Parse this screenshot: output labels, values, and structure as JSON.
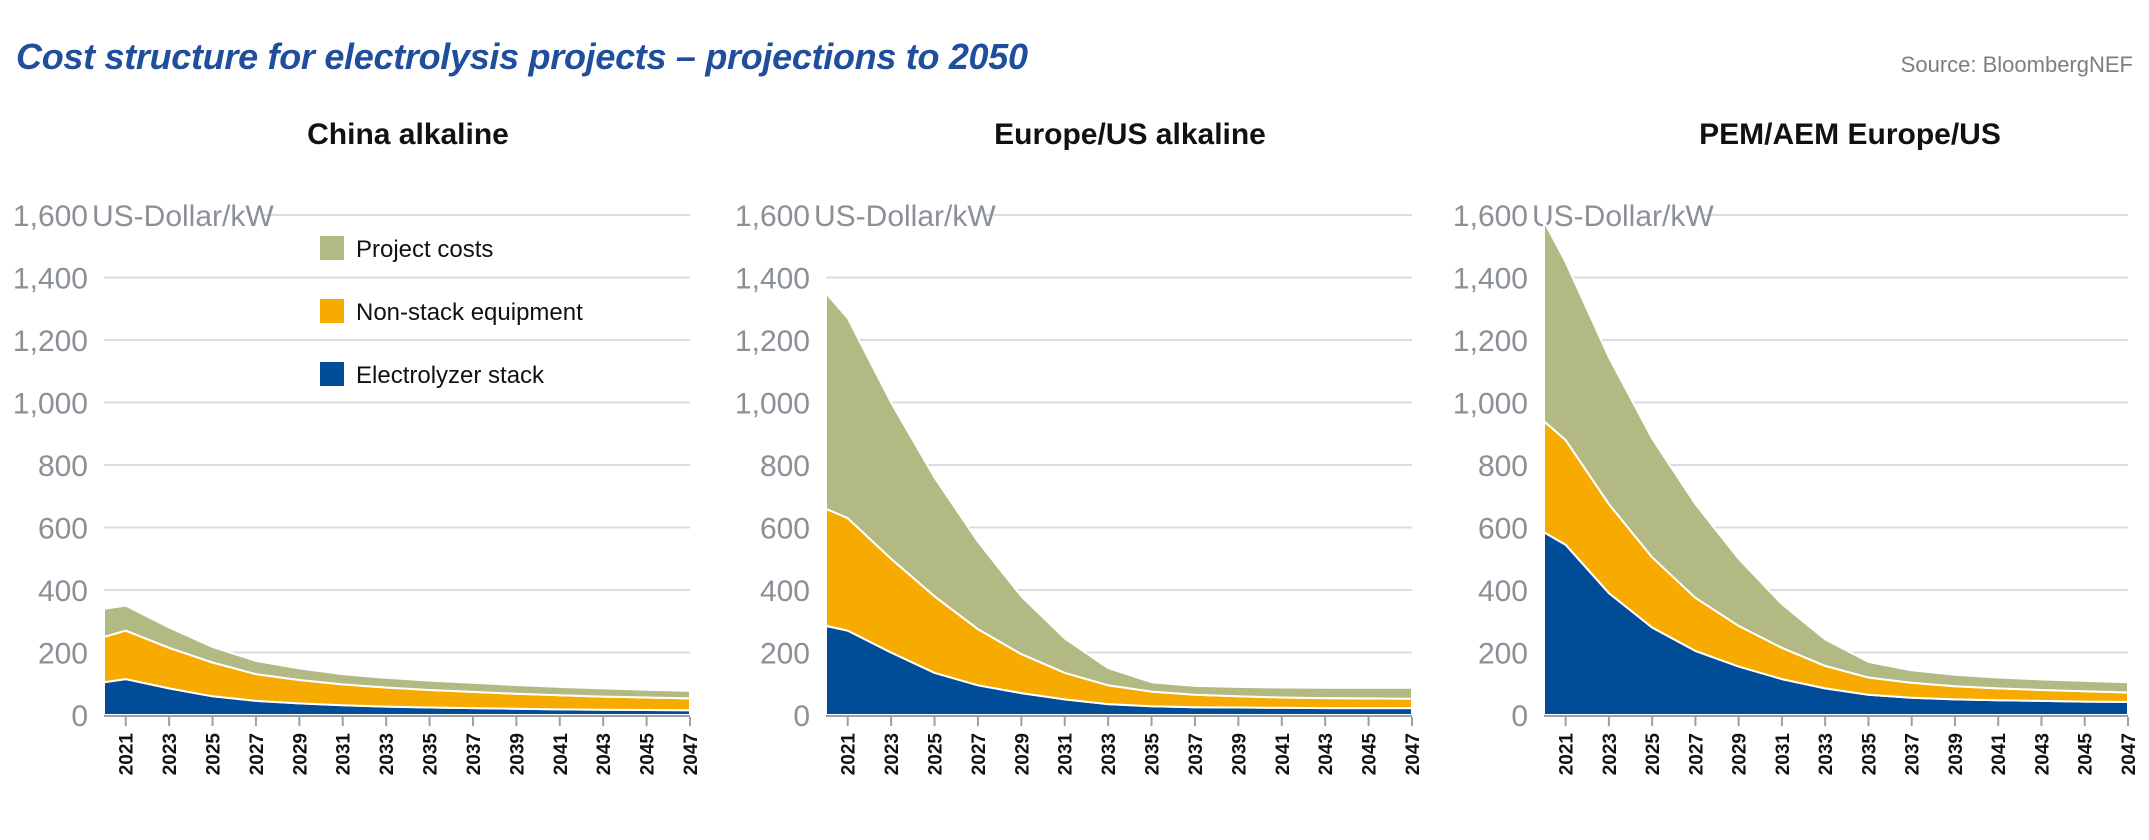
{
  "header": {
    "title": "Cost structure for electrolysis projects – projections to 2050",
    "source": "Source: BloombergNEF"
  },
  "colors": {
    "project_costs": "#b3b982",
    "non_stack": "#f7ab00",
    "stack": "#004c97",
    "grid": "#d9dce1",
    "axis_text": "#8b9097",
    "title": "#1f4e9c"
  },
  "chart_data": [
    {
      "type": "area",
      "stacked": true,
      "title": "China alkaline",
      "unit_label": "US-Dollar/kW",
      "ylim": [
        0,
        1600
      ],
      "yticks": [
        0,
        200,
        400,
        600,
        800,
        1000,
        1200,
        1400,
        1600
      ],
      "ytick_labels": [
        "0",
        "200",
        "400",
        "600",
        "800",
        "1,000",
        "1,200",
        "1,400",
        "1,600"
      ],
      "x_tick_labels": [
        "2021",
        "2023",
        "2025",
        "2027",
        "2029",
        "2031",
        "2033",
        "2035",
        "2037",
        "2039",
        "2041",
        "2043",
        "2045",
        "2047"
      ],
      "x_years": [
        2020,
        2021,
        2023,
        2025,
        2027,
        2029,
        2031,
        2033,
        2035,
        2037,
        2039,
        2041,
        2043,
        2045,
        2047
      ],
      "grid": true,
      "legend": {
        "position": "top-center",
        "items": [
          "Project costs",
          "Non-stack equipment",
          "Electrolyzer stack"
        ]
      },
      "series": [
        {
          "name": "Electrolyzer stack",
          "values": [
            105,
            115,
            85,
            60,
            45,
            37,
            31,
            27,
            24,
            22,
            20,
            18,
            17,
            16,
            15
          ]
        },
        {
          "name": "Non-stack equipment",
          "values": [
            145,
            155,
            130,
            108,
            86,
            75,
            67,
            61,
            56,
            52,
            48,
            45,
            42,
            40,
            38
          ]
        },
        {
          "name": "Project costs",
          "values": [
            90,
            80,
            65,
            50,
            42,
            37,
            33,
            31,
            30,
            29,
            28,
            27,
            26,
            25,
            24
          ]
        }
      ]
    },
    {
      "type": "area",
      "stacked": true,
      "title": "Europe/US alkaline",
      "unit_label": "US-Dollar/kW",
      "ylim": [
        0,
        1600
      ],
      "yticks": [
        0,
        200,
        400,
        600,
        800,
        1000,
        1200,
        1400,
        1600
      ],
      "ytick_labels": [
        "0",
        "200",
        "400",
        "600",
        "800",
        "1,000",
        "1,200",
        "1,400",
        "1,600"
      ],
      "x_tick_labels": [
        "2021",
        "2023",
        "2025",
        "2027",
        "2029",
        "2031",
        "2033",
        "2035",
        "2037",
        "2039",
        "2041",
        "2043",
        "2045",
        "2047"
      ],
      "x_years": [
        2020,
        2021,
        2023,
        2025,
        2027,
        2029,
        2031,
        2033,
        2035,
        2037,
        2039,
        2041,
        2043,
        2045,
        2047
      ],
      "grid": true,
      "series": [
        {
          "name": "Electrolyzer stack",
          "values": [
            285,
            270,
            200,
            135,
            95,
            70,
            50,
            35,
            28,
            25,
            24,
            23,
            22,
            22,
            22
          ]
        },
        {
          "name": "Non-stack equipment",
          "values": [
            375,
            360,
            300,
            245,
            180,
            125,
            85,
            60,
            47,
            40,
            36,
            33,
            32,
            31,
            30
          ]
        },
        {
          "name": "Project costs",
          "values": [
            690,
            640,
            500,
            380,
            280,
            185,
            110,
            55,
            30,
            28,
            30,
            32,
            33,
            34,
            35
          ]
        }
      ]
    },
    {
      "type": "area",
      "stacked": true,
      "title": "PEM/AEM Europe/US",
      "unit_label": "US-Dollar/kW",
      "ylim": [
        0,
        1600
      ],
      "yticks": [
        0,
        200,
        400,
        600,
        800,
        1000,
        1200,
        1400,
        1600
      ],
      "ytick_labels": [
        "0",
        "200",
        "400",
        "600",
        "800",
        "1,000",
        "1,200",
        "1,400",
        "1,600"
      ],
      "x_tick_labels": [
        "2021",
        "2023",
        "2025",
        "2027",
        "2029",
        "2031",
        "2033",
        "2035",
        "2037",
        "2039",
        "2041",
        "2043",
        "2045",
        "2047"
      ],
      "x_years": [
        2020,
        2021,
        2023,
        2025,
        2027,
        2029,
        2031,
        2033,
        2035,
        2037,
        2039,
        2041,
        2043,
        2045,
        2047
      ],
      "grid": true,
      "series": [
        {
          "name": "Electrolyzer stack",
          "values": [
            585,
            545,
            390,
            280,
            205,
            155,
            115,
            85,
            65,
            55,
            50,
            47,
            45,
            43,
            42
          ]
        },
        {
          "name": "Non-stack equipment",
          "values": [
            355,
            335,
            285,
            225,
            170,
            130,
            100,
            72,
            55,
            48,
            42,
            38,
            35,
            33,
            30
          ]
        },
        {
          "name": "Project costs",
          "values": [
            640,
            570,
            470,
            380,
            300,
            215,
            140,
            85,
            50,
            40,
            37,
            35,
            34,
            33,
            33
          ]
        }
      ]
    }
  ]
}
